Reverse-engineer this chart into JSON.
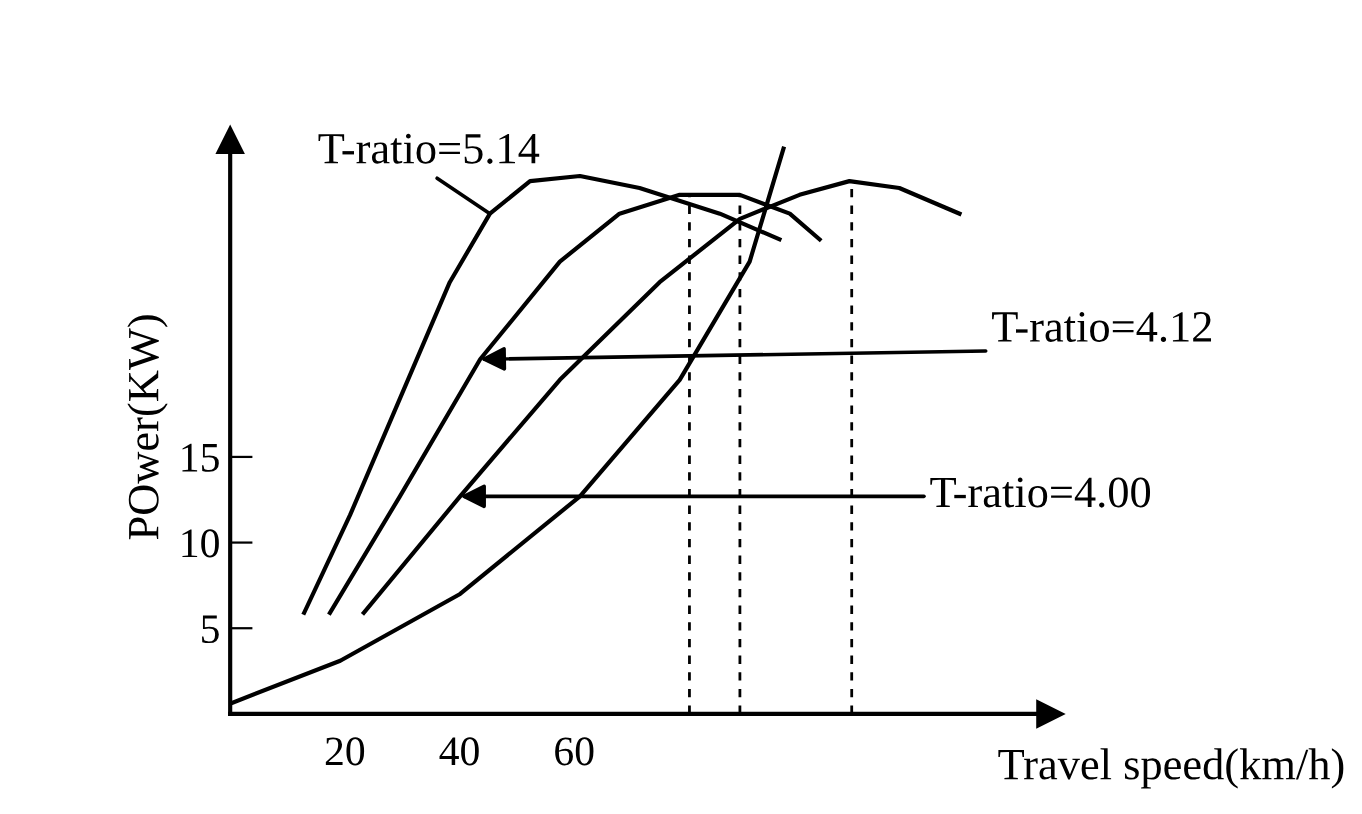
{
  "chart_data": {
    "type": "line",
    "xlabel": "Travel speed(km/h)",
    "ylabel": "POwer(KW)",
    "xlim": [
      0,
      143
    ],
    "ylim": [
      0,
      33.5
    ],
    "xticks": [
      20,
      40,
      60
    ],
    "yticks": [
      5,
      10,
      15
    ],
    "grid": false,
    "legend": false,
    "marker": "none",
    "line_style": "solid",
    "series": [
      {
        "color": "#000000",
        "x": [
          12.9,
          20.9,
          29.6,
          38.3,
          45.3,
          52.3,
          61,
          71.4,
          85.4,
          95.8
        ],
        "values": [
          5.9,
          11.6,
          18.4,
          25.2,
          29.2,
          31.1,
          31.4,
          30.7,
          29.2,
          27.7
        ]
      },
      {
        "color": "#000000",
        "x": [
          17.4,
          29.6,
          43.6,
          57.5,
          67.9,
          78.4,
          88.9,
          97.6,
          102.8
        ],
        "values": [
          5.9,
          12.7,
          20.7,
          26.4,
          29.2,
          30.3,
          30.3,
          29.2,
          27.7
        ]
      },
      {
        "color": "#000000",
        "x": [
          23.3,
          40.1,
          57.5,
          74.9,
          88.9,
          99.3,
          108,
          116.7,
          127.2
        ],
        "values": [
          5.9,
          12.7,
          19.5,
          25.2,
          28.9,
          30.3,
          31.1,
          30.7,
          29.2
        ]
      },
      {
        "color": "#000000",
        "x": [
          0,
          19.2,
          40.1,
          61,
          78.4,
          90.6,
          96.5
        ],
        "values": [
          0.6,
          3.1,
          7,
          12.7,
          19.5,
          26.4,
          33
        ]
      },
      {
        "color": "#000000",
        "line_style": "dashed",
        "x": [
          80.1,
          80.1
        ],
        "values": [
          0,
          30.3
        ]
      },
      {
        "color": "#000000",
        "line_style": "dashed",
        "x": [
          88.9,
          88.9
        ],
        "values": [
          0,
          30.3
        ]
      },
      {
        "color": "#000000",
        "line_style": "dashed",
        "x": [
          108.4,
          108.4
        ],
        "values": [
          0,
          31.1
        ]
      }
    ],
    "annotations": [
      {
        "text": "T-ratio=5.14",
        "x": 45.3,
        "y": 29.2
      },
      {
        "text": "T-ratio=4.12",
        "x": 43.6,
        "y": 20.7
      },
      {
        "text": "T-ratio=4.00",
        "x": 40.1,
        "y": 12.7
      }
    ]
  }
}
